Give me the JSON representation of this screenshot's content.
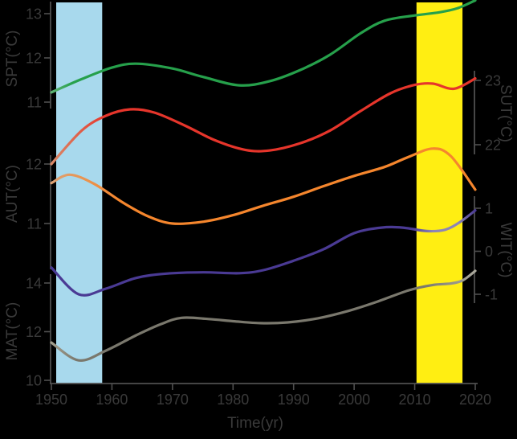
{
  "chart_data": {
    "type": "line",
    "title": "",
    "xlabel": "Time(yr)",
    "x_range": [
      1950,
      2020
    ],
    "x_ticks": [
      1950,
      1960,
      1970,
      1980,
      1990,
      2000,
      2010,
      2020
    ],
    "grid": false,
    "legend": "none",
    "background_color": "#000000",
    "text_color": "#3a3a3a",
    "spine_color": "#4f4f4f",
    "highlight_bands": [
      {
        "name": "band-1950s",
        "color": "#a8d9ed",
        "from_year": 1950.8,
        "to_year": 1958.4
      },
      {
        "name": "band-2010s",
        "color": "#ffee12",
        "from_year": 2010.3,
        "to_year": 2017.9
      }
    ],
    "axes": {
      "SPT": {
        "label": "SPT(°C)",
        "side": "left",
        "ticks": [
          13,
          12,
          11
        ]
      },
      "SUT": {
        "label": "SUT(°C)",
        "side": "right",
        "ticks": [
          23,
          22
        ]
      },
      "AUT": {
        "label": "AUT(°C)",
        "side": "left",
        "ticks": [
          12,
          11
        ]
      },
      "WIT": {
        "label": "WIT(°C)",
        "side": "right",
        "ticks": [
          1,
          0,
          -1
        ]
      },
      "MAT": {
        "label": "MAT(°C)",
        "side": "left",
        "ticks": [
          14,
          12,
          10
        ]
      }
    },
    "series": [
      {
        "name": "SPT",
        "axis": "SPT",
        "color": "#26a04b",
        "gradient": [
          [
            0,
            "#5db272"
          ],
          [
            0.05,
            "#26a04b"
          ],
          [
            1,
            "#26a04b"
          ]
        ],
        "points": [
          [
            1950,
            11.22
          ],
          [
            1955,
            11.52
          ],
          [
            1960,
            11.78
          ],
          [
            1964,
            11.87
          ],
          [
            1970,
            11.76
          ],
          [
            1975,
            11.57
          ],
          [
            1981,
            11.38
          ],
          [
            1986,
            11.47
          ],
          [
            1991,
            11.72
          ],
          [
            1996,
            12.07
          ],
          [
            2001,
            12.55
          ],
          [
            2005,
            12.84
          ],
          [
            2010,
            12.96
          ],
          [
            2014,
            13.03
          ],
          [
            2017,
            13.12
          ],
          [
            2020,
            13.3
          ]
        ]
      },
      {
        "name": "SUT",
        "axis": "SUT",
        "color": "#e6352b",
        "gradient": [
          [
            0,
            "#d98a68"
          ],
          [
            0.13,
            "#e6352b"
          ],
          [
            1,
            "#e6352b"
          ]
        ],
        "points": [
          [
            1950,
            21.7
          ],
          [
            1955,
            22.22
          ],
          [
            1959,
            22.45
          ],
          [
            1963,
            22.55
          ],
          [
            1967,
            22.5
          ],
          [
            1972,
            22.3
          ],
          [
            1977,
            22.07
          ],
          [
            1982,
            21.92
          ],
          [
            1986,
            21.91
          ],
          [
            1991,
            22.02
          ],
          [
            1996,
            22.22
          ],
          [
            2001,
            22.52
          ],
          [
            2006,
            22.8
          ],
          [
            2010,
            22.93
          ],
          [
            2013,
            22.95
          ],
          [
            2016.5,
            22.87
          ],
          [
            2020,
            23.03
          ]
        ]
      },
      {
        "name": "AUT",
        "axis": "AUT",
        "color": "#f5862d",
        "gradient": [
          [
            0,
            "#dda173"
          ],
          [
            0.16,
            "#f5862d"
          ],
          [
            1,
            "#f5862d"
          ]
        ],
        "points": [
          [
            1950,
            11.68
          ],
          [
            1953,
            11.82
          ],
          [
            1957,
            11.67
          ],
          [
            1962,
            11.34
          ],
          [
            1966,
            11.12
          ],
          [
            1970,
            11.0
          ],
          [
            1975,
            11.03
          ],
          [
            1980,
            11.14
          ],
          [
            1985,
            11.3
          ],
          [
            1990,
            11.45
          ],
          [
            1995,
            11.63
          ],
          [
            2000,
            11.8
          ],
          [
            2005,
            11.95
          ],
          [
            2009,
            12.12
          ],
          [
            2013,
            12.26
          ],
          [
            2016,
            12.13
          ],
          [
            2020,
            11.57
          ]
        ]
      },
      {
        "name": "WIT",
        "axis": "WIT",
        "color": "#4a3a94",
        "gradient": [
          [
            0,
            "#4a3a94"
          ],
          [
            0.85,
            "#4a3a94"
          ],
          [
            0.9,
            "#8d85b5"
          ],
          [
            0.96,
            "#8d85b5"
          ],
          [
            1,
            "#4a3a94"
          ]
        ],
        "points": [
          [
            1950,
            -0.38
          ],
          [
            1954.5,
            -1.0
          ],
          [
            1959,
            -0.87
          ],
          [
            1964,
            -0.62
          ],
          [
            1969,
            -0.52
          ],
          [
            1975,
            -0.49
          ],
          [
            1981,
            -0.51
          ],
          [
            1985,
            -0.44
          ],
          [
            1990,
            -0.22
          ],
          [
            1995,
            0.05
          ],
          [
            2000,
            0.42
          ],
          [
            2004.5,
            0.55
          ],
          [
            2008,
            0.55
          ],
          [
            2012,
            0.47
          ],
          [
            2015,
            0.5
          ],
          [
            2017.5,
            0.68
          ],
          [
            2020,
            0.95
          ]
        ]
      },
      {
        "name": "MAT",
        "axis": "MAT",
        "color": "#7a786d",
        "gradient": [
          [
            0,
            "#a39f8e"
          ],
          [
            0.06,
            "#7a786d"
          ],
          [
            0.88,
            "#7a786d"
          ],
          [
            1,
            "#aaa89c"
          ]
        ],
        "points": [
          [
            1950,
            11.55
          ],
          [
            1954.5,
            10.82
          ],
          [
            1959,
            11.22
          ],
          [
            1964,
            11.85
          ],
          [
            1968,
            12.3
          ],
          [
            1971.5,
            12.57
          ],
          [
            1976,
            12.52
          ],
          [
            1980,
            12.43
          ],
          [
            1984.5,
            12.35
          ],
          [
            1989,
            12.38
          ],
          [
            1994,
            12.55
          ],
          [
            1999,
            12.85
          ],
          [
            2004,
            13.25
          ],
          [
            2009,
            13.7
          ],
          [
            2013,
            13.92
          ],
          [
            2016,
            13.98
          ],
          [
            2018,
            14.12
          ],
          [
            2020,
            14.5
          ]
        ]
      }
    ]
  }
}
